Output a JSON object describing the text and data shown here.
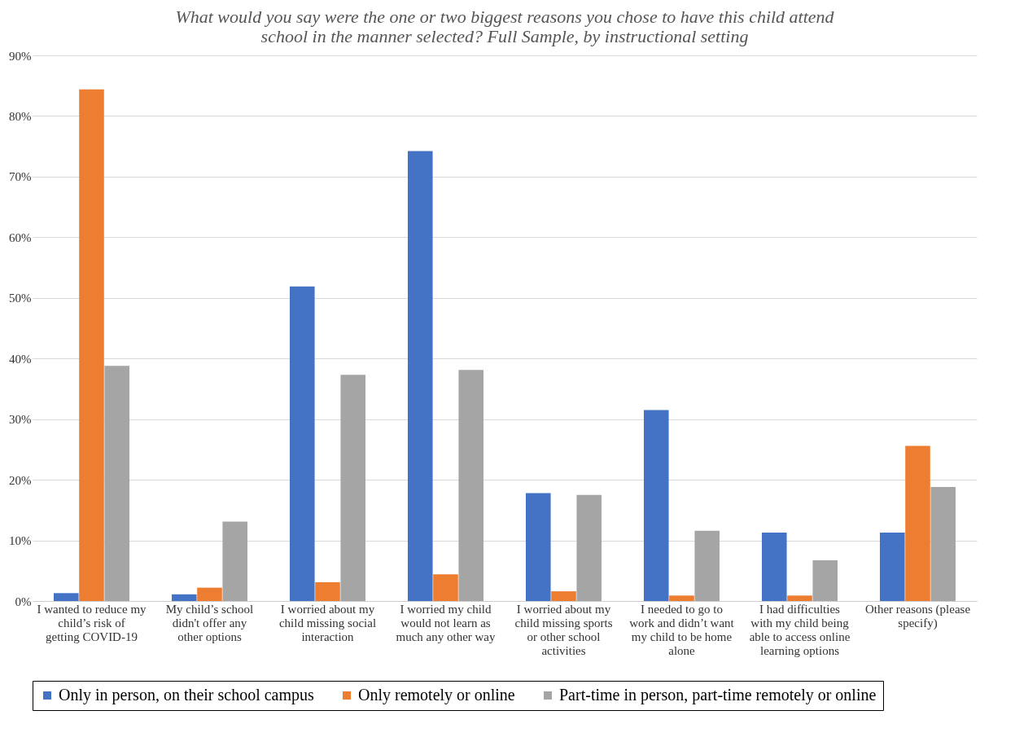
{
  "chart_data": {
    "type": "bar",
    "title": "What would you say were the one or two biggest reasons you chose to have this child attend school in the manner selected?  Full Sample, by instructional setting",
    "categories": [
      "I wanted to reduce my child’s risk of getting COVID-19",
      "My child’s school didn't offer any other options",
      "I worried about my child missing social interaction",
      "I worried my child would not learn as much any other way",
      "I worried about my child missing sports or other school activities",
      "I needed to go to work and didn’t want my child to be home alone",
      "I had difficulties with my child being able to access online learning options",
      "Other reasons (please specify)"
    ],
    "series": [
      {
        "name": "Only in person, on their school campus",
        "color": "#4472c4",
        "values": [
          1.3,
          1.1,
          51.9,
          74.2,
          17.8,
          31.5,
          11.3,
          11.3
        ]
      },
      {
        "name": "Only remotely or online",
        "color": "#ed7d31",
        "values": [
          84.4,
          2.2,
          3.1,
          4.4,
          1.6,
          0.9,
          0.9,
          25.6
        ]
      },
      {
        "name": "Part-time in person, part-time remotely or online",
        "color": "#a5a5a5",
        "values": [
          38.8,
          13.1,
          37.3,
          38.1,
          17.5,
          11.6,
          6.7,
          18.8
        ]
      }
    ],
    "ylim": [
      0,
      90
    ],
    "yticks": [
      {
        "value": 0,
        "label": "0%"
      },
      {
        "value": 10,
        "label": "10%"
      },
      {
        "value": 20,
        "label": "20%"
      },
      {
        "value": 30,
        "label": "30%"
      },
      {
        "value": 40,
        "label": "40%"
      },
      {
        "value": 50,
        "label": "50%"
      },
      {
        "value": 60,
        "label": "60%"
      },
      {
        "value": 70,
        "label": "70%"
      },
      {
        "value": 80,
        "label": "80%"
      },
      {
        "value": 90,
        "label": "90%"
      }
    ],
    "grid": "y",
    "legend": "bottom"
  }
}
